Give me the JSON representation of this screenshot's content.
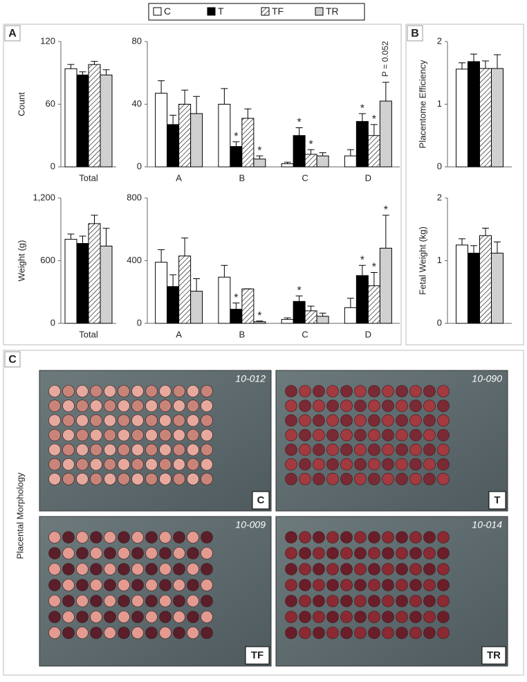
{
  "panel_labels": [
    "A",
    "B",
    "C"
  ],
  "side_label": "Placental Morphology",
  "photos": [
    {
      "id": "10-012",
      "label": "C"
    },
    {
      "id": "10-090",
      "label": "T"
    },
    {
      "id": "10-009",
      "label": "TF"
    },
    {
      "id": "10-014",
      "label": "TR"
    }
  ],
  "chart_data": [
    {
      "type": "bar",
      "y_label": "Count",
      "categories": [
        "Total"
      ],
      "ylim": [
        0,
        120
      ],
      "yticks": [
        0,
        60,
        120
      ],
      "series": [
        {
          "name": "C",
          "color": "#ffffff",
          "values": [
            94
          ],
          "errors": [
            4
          ]
        },
        {
          "name": "T",
          "color": "#000000",
          "values": [
            88
          ],
          "errors": [
            3
          ]
        },
        {
          "name": "TF",
          "color": "#ffffff",
          "pattern": "hatch",
          "values": [
            98
          ],
          "errors": [
            3
          ]
        },
        {
          "name": "TR",
          "color": "#d0d0d0",
          "values": [
            88
          ],
          "errors": [
            5
          ]
        }
      ]
    },
    {
      "type": "bar",
      "categories": [
        "A",
        "B",
        "C",
        "D"
      ],
      "ylim": [
        0,
        80
      ],
      "yticks": [
        0,
        40,
        80
      ],
      "series": [
        {
          "name": "C",
          "color": "#ffffff",
          "values": [
            47,
            40,
            2,
            7
          ],
          "errors": [
            8,
            10,
            1,
            4
          ]
        },
        {
          "name": "T",
          "color": "#000000",
          "values": [
            27,
            13,
            20,
            29
          ],
          "errors": [
            6,
            3,
            5,
            5
          ]
        },
        {
          "name": "TF",
          "color": "#ffffff",
          "pattern": "hatch",
          "values": [
            40,
            31,
            8,
            20
          ],
          "errors": [
            9,
            6,
            3,
            7
          ]
        },
        {
          "name": "TR",
          "color": "#d0d0d0",
          "values": [
            34,
            5,
            7,
            42
          ],
          "errors": [
            11,
            2,
            2,
            12
          ]
        }
      ],
      "annotations": [
        {
          "text": "*",
          "category": "B",
          "series": "T"
        },
        {
          "text": "*",
          "category": "B",
          "series": "TR"
        },
        {
          "text": "*",
          "category": "C",
          "series": "T"
        },
        {
          "text": "*",
          "category": "C",
          "series": "TF"
        },
        {
          "text": "*",
          "category": "D",
          "series": "T"
        },
        {
          "text": "*",
          "category": "D",
          "series": "TF"
        },
        {
          "text": "P = 0.052",
          "category": "D",
          "series": "TR",
          "orientation": "vertical"
        }
      ]
    },
    {
      "type": "bar",
      "y_label": "Placentome Efficiency",
      "categories": [
        null
      ],
      "ylim": [
        0,
        2
      ],
      "yticks": [
        0,
        1,
        2
      ],
      "series": [
        {
          "name": "C",
          "color": "#ffffff",
          "values": [
            1.56
          ],
          "errors": [
            0.1
          ]
        },
        {
          "name": "T",
          "color": "#000000",
          "values": [
            1.68
          ],
          "errors": [
            0.12
          ]
        },
        {
          "name": "TF",
          "color": "#ffffff",
          "pattern": "hatch",
          "values": [
            1.57
          ],
          "errors": [
            0.12
          ]
        },
        {
          "name": "TR",
          "color": "#d0d0d0",
          "values": [
            1.57
          ],
          "errors": [
            0.22
          ]
        }
      ]
    },
    {
      "type": "bar",
      "y_label": "Weight (g)",
      "categories": [
        "Total"
      ],
      "ylim": [
        0,
        1200
      ],
      "yticks": [
        0,
        600,
        {
          "value": 1200,
          "label": "1,200"
        }
      ],
      "series": [
        {
          "name": "C",
          "color": "#ffffff",
          "values": [
            805
          ],
          "errors": [
            50
          ]
        },
        {
          "name": "T",
          "color": "#000000",
          "values": [
            765
          ],
          "errors": [
            70
          ]
        },
        {
          "name": "TF",
          "color": "#ffffff",
          "pattern": "hatch",
          "values": [
            955
          ],
          "errors": [
            80
          ]
        },
        {
          "name": "TR",
          "color": "#d0d0d0",
          "values": [
            740
          ],
          "errors": [
            170
          ]
        }
      ]
    },
    {
      "type": "bar",
      "categories": [
        "A",
        "B",
        "C",
        "D"
      ],
      "ylim": [
        0,
        800
      ],
      "yticks": [
        0,
        400,
        800
      ],
      "series": [
        {
          "name": "C",
          "color": "#ffffff",
          "values": [
            390,
            295,
            25,
            100
          ],
          "errors": [
            80,
            75,
            10,
            60
          ]
        },
        {
          "name": "T",
          "color": "#000000",
          "values": [
            235,
            90,
            140,
            305
          ],
          "errors": [
            75,
            40,
            35,
            65
          ]
        },
        {
          "name": "TF",
          "color": "#ffffff",
          "pattern": "hatch",
          "values": [
            430,
            220,
            80,
            240
          ],
          "errors": [
            115,
            0,
            30,
            85
          ]
        },
        {
          "name": "TR",
          "color": "#d0d0d0",
          "values": [
            205,
            10,
            45,
            480
          ],
          "errors": [
            80,
            5,
            20,
            210
          ]
        }
      ],
      "annotations": [
        {
          "text": "*",
          "category": "B",
          "series": "T"
        },
        {
          "text": "*",
          "category": "B",
          "series": "TR"
        },
        {
          "text": "*",
          "category": "C",
          "series": "T"
        },
        {
          "text": "*",
          "category": "D",
          "series": "T"
        },
        {
          "text": "*",
          "category": "D",
          "series": "TF"
        },
        {
          "text": "*",
          "category": "D",
          "series": "TR"
        }
      ]
    },
    {
      "type": "bar",
      "y_label": "Fetal Weight (kg)",
      "categories": [
        null
      ],
      "ylim": [
        0,
        2
      ],
      "yticks": [
        0,
        1,
        2
      ],
      "series": [
        {
          "name": "C",
          "color": "#ffffff",
          "values": [
            1.25
          ],
          "errors": [
            0.1
          ]
        },
        {
          "name": "T",
          "color": "#000000",
          "values": [
            1.12
          ],
          "errors": [
            0.12
          ]
        },
        {
          "name": "TF",
          "color": "#ffffff",
          "pattern": "hatch",
          "values": [
            1.4
          ],
          "errors": [
            0.12
          ]
        },
        {
          "name": "TR",
          "color": "#d0d0d0",
          "values": [
            1.12
          ],
          "errors": [
            0.18
          ]
        }
      ]
    }
  ]
}
